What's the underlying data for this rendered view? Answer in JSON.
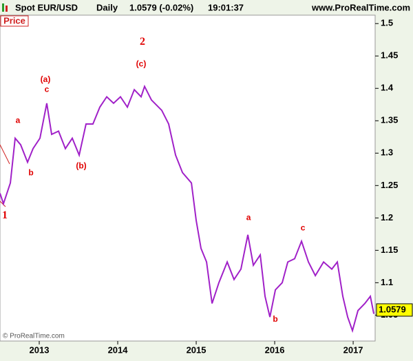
{
  "header": {
    "symbol": "Spot EUR/USD",
    "period": "Daily",
    "quote": "1.0579 (-0.02%)",
    "time": "19:01:37",
    "site": "www.ProRealTime.com"
  },
  "chart_data": {
    "type": "line",
    "panel_label": "Price",
    "copyright": "© ProRealTime.com",
    "x": [
      2012.5,
      2012.544,
      2012.632,
      2012.693,
      2012.763,
      2012.851,
      2012.921,
      2013.009,
      2013.096,
      2013.158,
      2013.246,
      2013.333,
      2013.421,
      2013.509,
      2013.596,
      2013.684,
      2013.772,
      2013.86,
      2013.947,
      2014.035,
      2014.123,
      2014.211,
      2014.298,
      2014.342,
      2014.43,
      2014.561,
      2014.649,
      2014.737,
      2014.825,
      2014.939,
      2015.0,
      2015.061,
      2015.132,
      2015.202,
      2015.289,
      2015.395,
      2015.482,
      2015.57,
      2015.658,
      2015.728,
      2015.816,
      2015.877,
      2015.939,
      2016.009,
      2016.096,
      2016.167,
      2016.254,
      2016.342,
      2016.43,
      2016.518,
      2016.623,
      2016.728,
      2016.798,
      2016.868,
      2016.93,
      2016.991,
      2017.061,
      2017.149,
      2017.219,
      2017.263
    ],
    "series": [
      {
        "name": "EUR/USD",
        "color": "#a020c8",
        "values": [
          1.238,
          1.222,
          1.254,
          1.323,
          1.313,
          1.286,
          1.307,
          1.323,
          1.377,
          1.329,
          1.334,
          1.307,
          1.323,
          1.297,
          1.345,
          1.345,
          1.371,
          1.387,
          1.377,
          1.387,
          1.371,
          1.398,
          1.387,
          1.403,
          1.382,
          1.366,
          1.345,
          1.297,
          1.27,
          1.254,
          1.196,
          1.153,
          1.132,
          1.068,
          1.1,
          1.132,
          1.105,
          1.121,
          1.174,
          1.127,
          1.143,
          1.079,
          1.047,
          1.089,
          1.1,
          1.132,
          1.137,
          1.164,
          1.132,
          1.111,
          1.132,
          1.121,
          1.132,
          1.079,
          1.047,
          1.026,
          1.057,
          1.068,
          1.079,
          1.052
        ]
      }
    ],
    "last_price": 1.0579,
    "xlim": [
      2012.5,
      2017.28
    ],
    "xticks": [
      2013,
      2014,
      2015,
      2016,
      2017
    ],
    "ylim": [
      1.01,
      1.513
    ],
    "yticks": [
      1.05,
      1.1,
      1.15,
      1.2,
      1.25,
      1.3,
      1.35,
      1.4,
      1.45,
      1.5
    ],
    "annotations": [
      {
        "text": "1",
        "x": 2012.561,
        "y": 1.203,
        "big": true
      },
      {
        "text": "a",
        "x": 2012.728,
        "y": 1.35
      },
      {
        "text": "b",
        "x": 2012.895,
        "y": 1.269
      },
      {
        "text": "(a)",
        "x": 2013.079,
        "y": 1.413
      },
      {
        "text": "c",
        "x": 2013.096,
        "y": 1.398
      },
      {
        "text": "(b)",
        "x": 2013.535,
        "y": 1.28
      },
      {
        "text": "2",
        "x": 2014.316,
        "y": 1.471,
        "big": true
      },
      {
        "text": "(c)",
        "x": 2014.298,
        "y": 1.437
      },
      {
        "text": "a",
        "x": 2015.667,
        "y": 1.2
      },
      {
        "text": "b",
        "x": 2016.009,
        "y": 1.043
      },
      {
        "text": "c",
        "x": 2016.36,
        "y": 1.184
      }
    ]
  }
}
